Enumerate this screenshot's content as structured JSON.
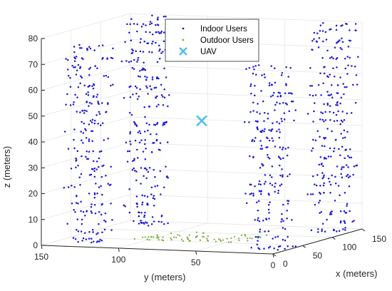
{
  "chart_data": {
    "type": "scatter",
    "projection": "3d",
    "xlabel": "x (meters)",
    "ylabel": "y (meters)",
    "zlabel": "z (meters)",
    "xlim": [
      0,
      150
    ],
    "ylim": [
      0,
      150
    ],
    "zlim": [
      0,
      80
    ],
    "xticks": [
      0,
      50,
      100,
      150
    ],
    "yticks": [
      0,
      50,
      100,
      150
    ],
    "zticks": [
      0,
      10,
      20,
      30,
      40,
      50,
      60,
      70,
      80
    ],
    "grid": true,
    "legend_position": "top-center",
    "series": [
      {
        "name": "Indoor Users",
        "marker": "dot",
        "color": "#1a1ad9",
        "buildings": [
          {
            "x": [
              20,
              45
            ],
            "y": [
              120,
              145
            ],
            "z": [
              0,
              75
            ]
          },
          {
            "x": [
              120,
              145
            ],
            "y": [
              120,
              145
            ],
            "z": [
              0,
              80
            ]
          },
          {
            "x": [
              15,
              40
            ],
            "y": [
              0,
              25
            ],
            "z": [
              0,
              70
            ]
          },
          {
            "x": [
              120,
              145
            ],
            "y": [
              0,
              25
            ],
            "z": [
              0,
              80
            ]
          }
        ]
      },
      {
        "name": "Outdoor Users",
        "marker": "dot",
        "color": "#77ac30",
        "region": {
          "x": [
            50,
            100
          ],
          "y": [
            40,
            110
          ],
          "z": 0
        }
      },
      {
        "name": "UAV",
        "marker": "x",
        "color": "#4dbeee",
        "points": [
          {
            "x": 75,
            "y": 75,
            "z": 45
          }
        ]
      }
    ]
  }
}
